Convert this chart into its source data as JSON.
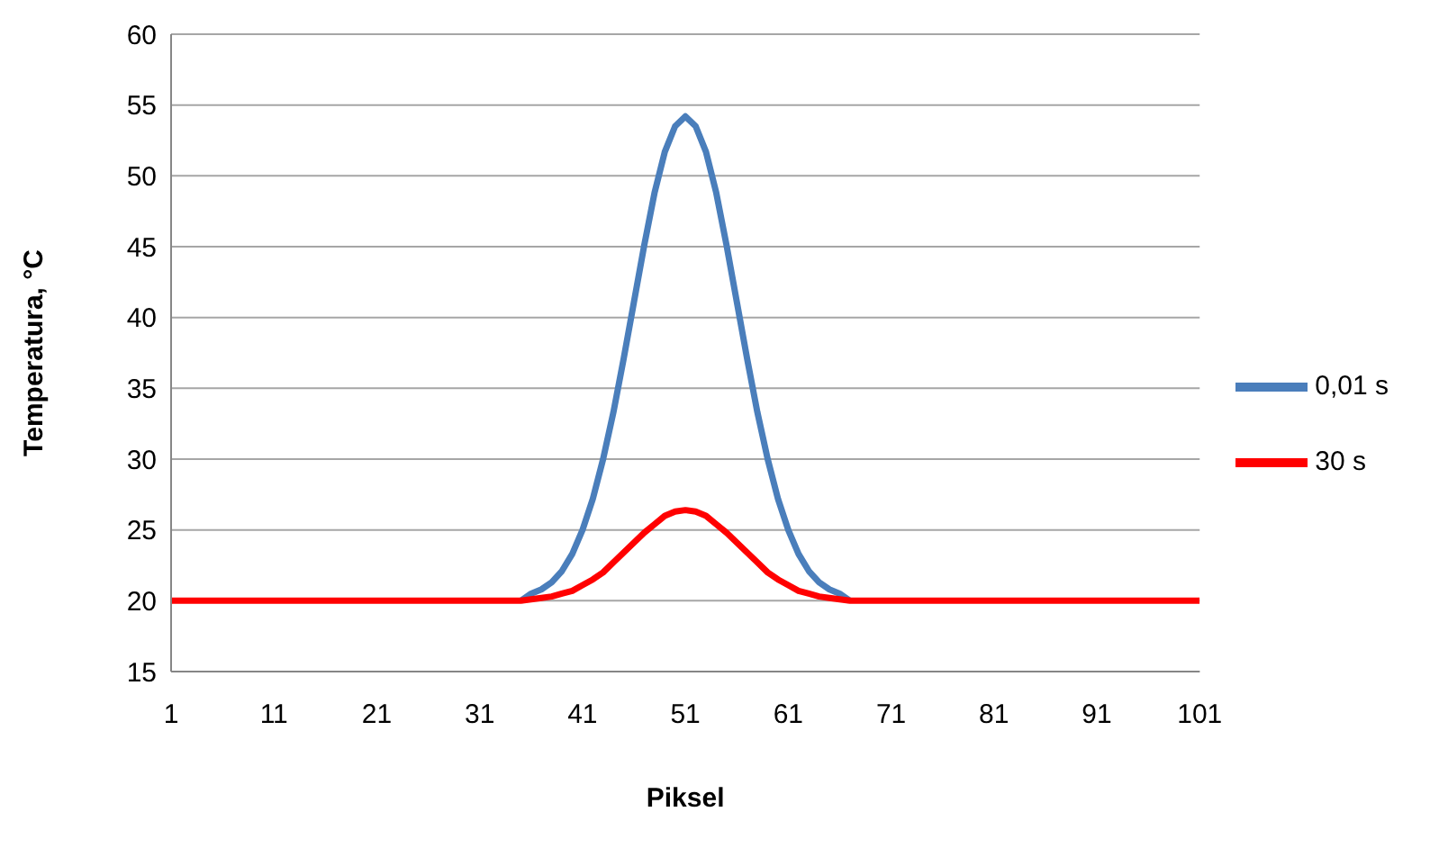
{
  "chart_data": {
    "type": "line",
    "xlabel": "Piksel",
    "ylabel": "Temperatura, °C",
    "x": [
      1,
      2,
      3,
      4,
      5,
      6,
      7,
      8,
      9,
      10,
      11,
      12,
      13,
      14,
      15,
      16,
      17,
      18,
      19,
      20,
      21,
      22,
      23,
      24,
      25,
      26,
      27,
      28,
      29,
      30,
      31,
      32,
      33,
      34,
      35,
      36,
      37,
      38,
      39,
      40,
      41,
      42,
      43,
      44,
      45,
      46,
      47,
      48,
      49,
      50,
      51,
      52,
      53,
      54,
      55,
      56,
      57,
      58,
      59,
      60,
      61,
      62,
      63,
      64,
      65,
      66,
      67,
      68,
      69,
      70,
      71,
      72,
      73,
      74,
      75,
      76,
      77,
      78,
      79,
      80,
      81,
      82,
      83,
      84,
      85,
      86,
      87,
      88,
      89,
      90,
      91,
      92,
      93,
      94,
      95,
      96,
      97,
      98,
      99,
      100,
      101
    ],
    "xlim": [
      1,
      101
    ],
    "xticks": [
      1,
      11,
      21,
      31,
      41,
      51,
      61,
      71,
      81,
      91,
      101
    ],
    "ylim": [
      15,
      60
    ],
    "yticks": [
      15,
      20,
      25,
      30,
      35,
      40,
      45,
      50,
      55,
      60
    ],
    "grid": "y",
    "legend": "right",
    "marker": "none",
    "line_style": "solid",
    "series": [
      {
        "name": "0,01 s",
        "color": "#4a7ebb",
        "values": [
          null,
          null,
          null,
          null,
          null,
          null,
          null,
          null,
          null,
          null,
          null,
          null,
          null,
          null,
          null,
          null,
          null,
          null,
          null,
          null,
          null,
          null,
          null,
          null,
          null,
          null,
          null,
          null,
          null,
          null,
          null,
          null,
          null,
          null,
          20,
          20.5,
          20.8,
          21.3,
          22.1,
          23.3,
          25.0,
          27.2,
          30.0,
          33.3,
          37.1,
          41.1,
          45.1,
          48.8,
          51.7,
          53.5,
          54.2,
          53.5,
          51.7,
          48.8,
          45.1,
          41.1,
          37.1,
          33.3,
          30.0,
          27.2,
          25.0,
          23.3,
          22.1,
          21.3,
          20.8,
          20.5,
          20,
          null,
          null,
          null,
          null,
          null,
          null,
          null,
          null,
          null,
          null,
          null,
          null,
          null,
          null,
          null,
          null,
          null,
          null,
          null,
          null,
          null,
          null,
          null,
          null,
          null,
          null,
          null,
          null,
          null,
          null,
          null,
          null,
          null,
          null
        ]
      },
      {
        "name": "30 s",
        "color": "#ff0000",
        "values": [
          20,
          20,
          20,
          20,
          20,
          20,
          20,
          20,
          20,
          20,
          20,
          20,
          20,
          20,
          20,
          20,
          20,
          20,
          20,
          20,
          20,
          20,
          20,
          20,
          20,
          20,
          20,
          20,
          20,
          20,
          20,
          20,
          20,
          20,
          20,
          20.1,
          20.2,
          20.3,
          20.5,
          20.7,
          21.1,
          21.5,
          22.0,
          22.7,
          23.4,
          24.1,
          24.8,
          25.4,
          26.0,
          26.3,
          26.4,
          26.3,
          26.0,
          25.4,
          24.8,
          24.1,
          23.4,
          22.7,
          22.0,
          21.5,
          21.1,
          20.7,
          20.5,
          20.3,
          20.2,
          20.1,
          20,
          20,
          20,
          20,
          20,
          20,
          20,
          20,
          20,
          20,
          20,
          20,
          20,
          20,
          20,
          20,
          20,
          20,
          20,
          20,
          20,
          20,
          20,
          20,
          20,
          20,
          20,
          20,
          20,
          20,
          20,
          20,
          20,
          20,
          20
        ]
      }
    ]
  }
}
